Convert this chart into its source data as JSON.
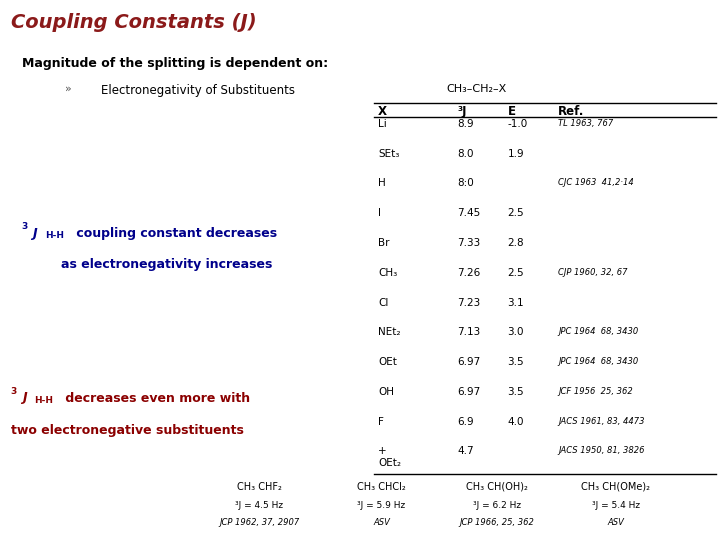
{
  "title": "Coupling Constants (J)",
  "title_color": "#8B1A1A",
  "bg_color": "#FFFFFF",
  "subtitle": "Magnitude of the splitting is dependent on:",
  "bullet": "Electronegativity of Substituents",
  "table_header_formula": "CH₃–CH₂–X",
  "table_data": [
    [
      "Li",
      "8.9",
      "-1.0",
      "TL 1963, 767"
    ],
    [
      "SEt₃",
      "8.0",
      "1.9",
      ""
    ],
    [
      "H",
      "8:0",
      "",
      "CJC 1963  41,2·14"
    ],
    [
      "I",
      "7.45",
      "2.5",
      ""
    ],
    [
      "Br",
      "7.33",
      "2.8",
      ""
    ],
    [
      "CH₃",
      "7.26",
      "2.5",
      "CJP 1960, 32, 67"
    ],
    [
      "Cl",
      "7.23",
      "3.1",
      ""
    ],
    [
      "NEt₂",
      "7.13",
      "3.0",
      "JPC 1964  68, 3430"
    ],
    [
      "OEt",
      "6.97",
      "3.5",
      "JPC 1964  68, 3430"
    ],
    [
      "OH",
      "6.97",
      "3.5",
      "JCF 1956  25, 362"
    ],
    [
      "F",
      "6.9",
      "4.0",
      "JACS 1961, 83, 4473"
    ],
    [
      "+\nOEt₂",
      "4.7",
      "",
      "JACS 1950, 81, 3826"
    ]
  ],
  "bottom_compounds": [
    {
      "formula": "CH₃ CHF₂",
      "J": "³J = 4.5 Hz",
      "ref": "JCP 1962, 37, 2907"
    },
    {
      "formula": "CH₃ CHCl₂",
      "J": "³J = 5.9 Hz",
      "ref": "ASV"
    },
    {
      "formula": "CH₃ CH(OH)₂",
      "J": "³J = 6.2 Hz",
      "ref": "JCP 1966, 25, 362"
    },
    {
      "formula": "CH₃ CH(OMe)₂",
      "J": "³J = 5.4 Hz",
      "ref": "ASV"
    }
  ],
  "accent_color": "#00008B",
  "dark_red": "#8B0000",
  "text_color": "#000000"
}
